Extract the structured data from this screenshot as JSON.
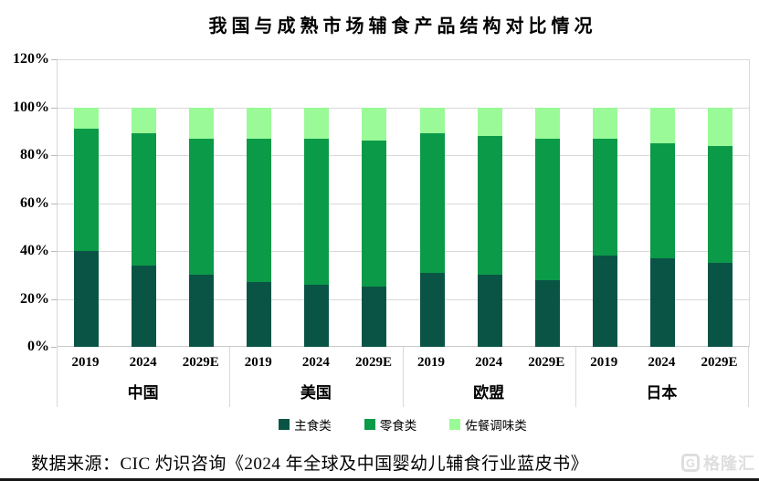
{
  "title": "我国与成熟市场辅食产品结构对比情况",
  "source_note": "数据来源：CIC 灼识咨询《2024 年全球及中国婴幼儿辅食行业蓝皮书》",
  "watermark": {
    "icon_letter": "G",
    "text": "格隆汇"
  },
  "colors": {
    "staple_dark_green": "#0a5446",
    "snack_green": "#0b9a47",
    "condiment_light_green": "#9afa98",
    "gridline": "#d9d9d9",
    "watermark_gray": "#dedede"
  },
  "chart_data": {
    "type": "bar",
    "stacked": true,
    "title": "我国与成熟市场辅食产品结构对比情况",
    "groups": [
      "中国",
      "美国",
      "欧盟",
      "日本"
    ],
    "years": [
      "2019",
      "2024",
      "2029E"
    ],
    "unit": "%",
    "ylim": [
      0,
      120
    ],
    "yticks": [
      "0%",
      "20%",
      "40%",
      "60%",
      "80%",
      "100%",
      "120%"
    ],
    "grid": true,
    "legend_position": "bottom",
    "series": [
      {
        "name": "主食类",
        "color": "#0a5446",
        "values": [
          40,
          34,
          30,
          27,
          26,
          25,
          31,
          30,
          28,
          38,
          37,
          35
        ]
      },
      {
        "name": "零食类",
        "color": "#0b9a47",
        "values": [
          51,
          55,
          57,
          60,
          61,
          61,
          58,
          58,
          59,
          49,
          48,
          49
        ]
      },
      {
        "name": "佐餐调味类",
        "color": "#9afa98",
        "values": [
          9,
          11,
          13,
          13,
          13,
          14,
          11,
          12,
          13,
          13,
          15,
          16
        ]
      }
    ]
  }
}
